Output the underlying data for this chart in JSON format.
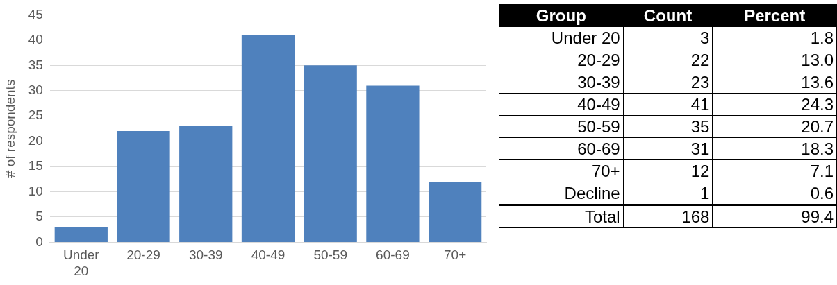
{
  "chart_data": [
    {
      "type": "bar",
      "ylabel": "# of respondents",
      "categories": [
        "Under 20",
        "20-29",
        "30-39",
        "40-49",
        "50-59",
        "60-69",
        "70+"
      ],
      "values": [
        3,
        22,
        23,
        41,
        35,
        31,
        12
      ],
      "color": "#4f81bd",
      "ylim": [
        0,
        45
      ],
      "yticks": [
        0,
        5,
        10,
        15,
        20,
        25,
        30,
        35,
        40,
        45
      ],
      "grid": "y"
    },
    {
      "type": "other",
      "legend_title": "Group",
      "data_labels": true,
      "categories": [
        "Under 20",
        "20-29",
        "30-39",
        "40-49",
        "50-59",
        "60-69",
        "70+",
        "Decline",
        "Total"
      ],
      "series": [
        {
          "name": "Count",
          "values": [
            3,
            22,
            23,
            41,
            35,
            31,
            12,
            1,
            168
          ]
        },
        {
          "name": "Percent",
          "values": [
            1.8,
            13.0,
            13.6,
            24.3,
            20.7,
            18.3,
            7.1,
            0.6,
            99.4
          ],
          "value_labels": [
            "1.8",
            "13.0",
            "13.6",
            "24.3",
            "20.7",
            "18.3",
            "7.1",
            "0.6",
            "99.4"
          ]
        }
      ]
    }
  ]
}
